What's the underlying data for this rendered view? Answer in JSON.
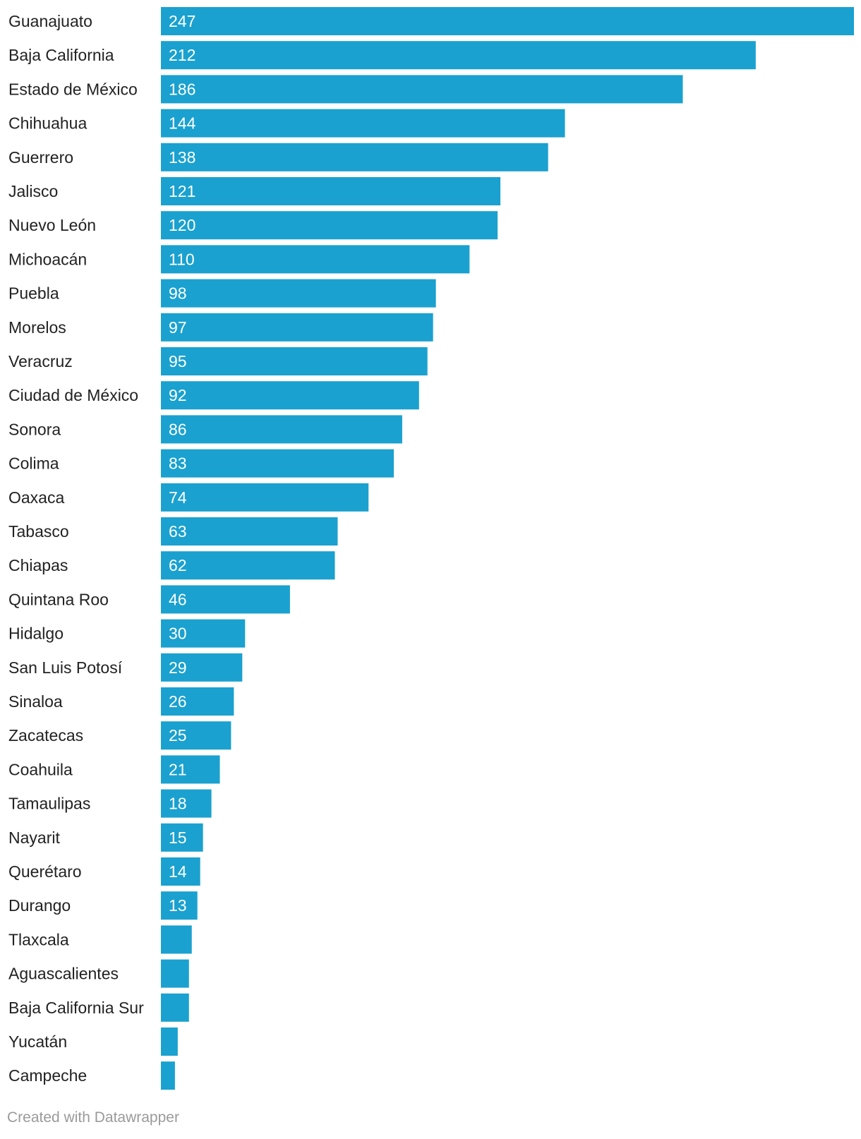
{
  "chart_data": {
    "type": "bar",
    "orientation": "horizontal",
    "categories": [
      "Guanajuato",
      "Baja California",
      "Estado de México",
      "Chihuahua",
      "Guerrero",
      "Jalisco",
      "Nuevo León",
      "Michoacán",
      "Puebla",
      "Morelos",
      "Veracruz",
      "Ciudad de México",
      "Sonora",
      "Colima",
      "Oaxaca",
      "Tabasco",
      "Chiapas",
      "Quintana Roo",
      "Hidalgo",
      "San Luis Potosí",
      "Sinaloa",
      "Zacatecas",
      "Coahuila",
      "Tamaulipas",
      "Nayarit",
      "Querétaro",
      "Durango",
      "Tlaxcala",
      "Aguascalientes",
      "Baja California Sur",
      "Yucatán",
      "Campeche"
    ],
    "values": [
      247,
      212,
      186,
      144,
      138,
      121,
      120,
      110,
      98,
      97,
      95,
      92,
      86,
      83,
      74,
      63,
      62,
      46,
      30,
      29,
      26,
      25,
      21,
      18,
      15,
      14,
      13,
      11,
      10,
      10,
      6,
      5
    ],
    "value_labels": [
      "247",
      "212",
      "186",
      "144",
      "138",
      "121",
      "120",
      "110",
      "98",
      "97",
      "95",
      "92",
      "86",
      "83",
      "74",
      "63",
      "62",
      "46",
      "30",
      "29",
      "26",
      "25",
      "21",
      "18",
      "15",
      "14",
      "13",
      "",
      "",
      "",
      "",
      ""
    ],
    "title": "",
    "xlabel": "",
    "ylabel": "",
    "xlim": [
      0,
      247
    ],
    "grid": false,
    "legend": "none",
    "colors": {
      "bar": "#1aa1cf",
      "category_text": "#222222",
      "value_text": "#ffffff"
    }
  },
  "footer": {
    "credit": "Created with Datawrapper"
  }
}
